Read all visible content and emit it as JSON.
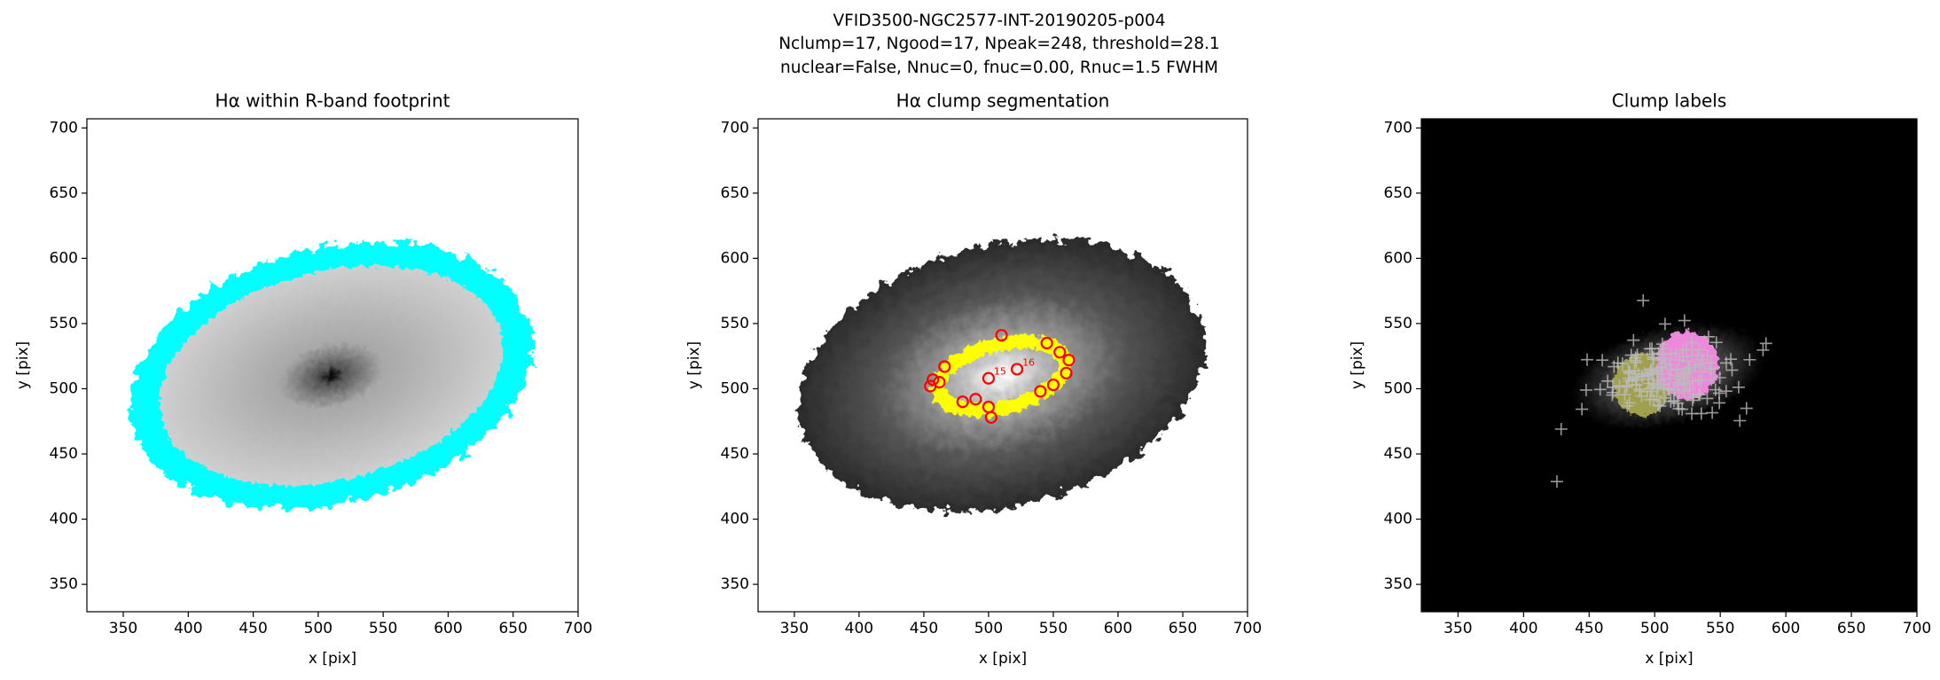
{
  "suptitle": [
    "VFID3500-NGC2577-INT-20190205-p004",
    "Nclump=17, Ngood=17, Npeak=248, threshold=28.1",
    "nuclear=False, Nnuc=0, fnuc=0.00, Rnuc=1.5 FWHM"
  ],
  "chart_data": [
    {
      "type": "image",
      "title": "Hα within R-band footprint",
      "x_label": "x [pix]",
      "y_label": "y [pix]",
      "background": "#ffffff",
      "overlay_color": "#00ffff",
      "xlim": [
        322,
        700
      ],
      "ylim": [
        329,
        707
      ],
      "xticks": [
        350,
        400,
        450,
        500,
        550,
        600,
        650,
        700
      ],
      "yticks": [
        350,
        400,
        450,
        500,
        550,
        600,
        650,
        700
      ]
    },
    {
      "type": "scatter",
      "title": "Hα clump segmentation",
      "x_label": "x [pix]",
      "y_label": "y [pix]",
      "background": "#ffffff",
      "overlay_color": "#ffff00",
      "color": "#ff0000",
      "xlim": [
        322,
        700
      ],
      "ylim": [
        329,
        707
      ],
      "xticks": [
        350,
        400,
        450,
        500,
        550,
        600,
        650,
        700
      ],
      "yticks": [
        350,
        400,
        450,
        500,
        550,
        600,
        650,
        700
      ],
      "x": [
        510,
        545,
        555,
        562,
        560,
        550,
        540,
        500,
        502,
        490,
        480,
        457,
        455,
        466,
        500,
        522,
        462
      ],
      "y": [
        541,
        535,
        528,
        522,
        512,
        503,
        498,
        486,
        478,
        492,
        490,
        507,
        502,
        517,
        508,
        515,
        505
      ],
      "point_labels": [
        null,
        null,
        null,
        null,
        null,
        null,
        null,
        null,
        null,
        null,
        null,
        null,
        null,
        null,
        "15",
        "16",
        null
      ]
    },
    {
      "type": "labels",
      "title": "Clump labels",
      "x_label": "x [pix]",
      "y_label": "y [pix]",
      "background": "#000000",
      "colors": [
        "#a0a050",
        "#ee88dd"
      ],
      "xlim": [
        322,
        700
      ],
      "ylim": [
        329,
        707
      ],
      "xticks": [
        350,
        400,
        450,
        500,
        550,
        600,
        650,
        700
      ],
      "yticks": [
        350,
        400,
        450,
        500,
        550,
        600,
        650,
        700
      ]
    }
  ]
}
